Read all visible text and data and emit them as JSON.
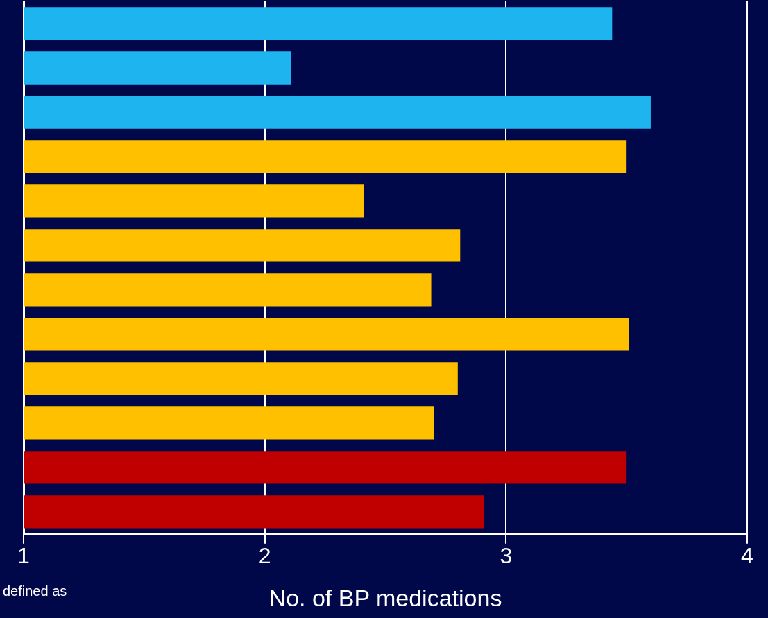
{
  "chart_data": {
    "type": "bar",
    "orientation": "horizontal",
    "xlabel": "No. of BP medications",
    "categories": [
      null,
      null,
      null,
      null,
      null,
      null,
      null,
      null,
      null,
      null,
      null,
      null
    ],
    "values": [
      3.44,
      2.11,
      3.6,
      3.5,
      2.41,
      2.81,
      2.69,
      3.51,
      2.8,
      2.7,
      3.5,
      2.91
    ],
    "colors": [
      "#1eb4f0",
      "#1eb4f0",
      "#1eb4f0",
      "#ffc000",
      "#ffc000",
      "#ffc000",
      "#ffc000",
      "#ffc000",
      "#ffc000",
      "#ffc000",
      "#c00000",
      "#c00000"
    ],
    "xlim": [
      1,
      4
    ],
    "xticks": [
      1,
      2,
      3,
      4
    ],
    "grid": "x",
    "legend": false,
    "annotations": [
      "defined as"
    ]
  }
}
